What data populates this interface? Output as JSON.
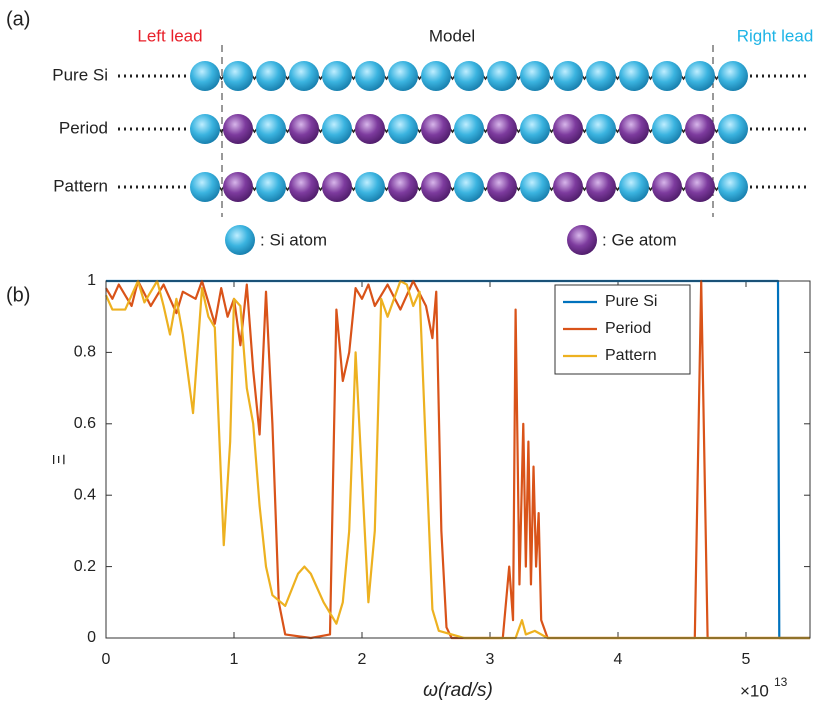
{
  "diagram": {
    "panel_label": "(a)",
    "left_lead": "Left lead",
    "model": "Model",
    "right_lead": "Right lead",
    "rows": [
      "Pure Si",
      "Period",
      "Pattern"
    ],
    "si_legend": ": Si atom",
    "ge_legend": ": Ge atom"
  },
  "chart_data": {
    "type": "line",
    "panel_label": "(b)",
    "x_label": "ω(rad/s)",
    "y_label": "Ξ",
    "x_multiplier": "×10",
    "x_exponent": "13",
    "xlim": [
      0,
      5.5
    ],
    "ylim": [
      0,
      1
    ],
    "xticks": [
      0,
      1,
      2,
      3,
      4,
      5
    ],
    "yticks": [
      0,
      0.2,
      0.4,
      0.6,
      0.8,
      1
    ],
    "legend": "upper right",
    "series": [
      {
        "name": "Pure Si",
        "color": "#0072bd",
        "x": [
          0,
          5.25,
          5.26,
          5.5
        ],
        "values": [
          1,
          1,
          0,
          0
        ]
      },
      {
        "name": "Period",
        "color": "#d95319",
        "x": [
          0,
          0.05,
          0.1,
          0.2,
          0.25,
          0.35,
          0.45,
          0.55,
          0.6,
          0.7,
          0.75,
          0.85,
          0.9,
          0.95,
          1.0,
          1.05,
          1.1,
          1.15,
          1.2,
          1.25,
          1.3,
          1.35,
          1.4,
          1.6,
          1.75,
          1.8,
          1.85,
          1.9,
          1.95,
          2.0,
          2.05,
          2.1,
          2.2,
          2.3,
          2.4,
          2.5,
          2.55,
          2.58,
          2.62,
          2.66,
          2.7,
          3.1,
          3.15,
          3.18,
          3.2,
          3.23,
          3.26,
          3.28,
          3.3,
          3.32,
          3.34,
          3.36,
          3.38,
          3.4,
          3.45,
          4.6,
          4.65,
          4.7,
          5.5
        ],
        "values": [
          0.98,
          0.95,
          0.99,
          0.93,
          1,
          0.93,
          0.99,
          0.91,
          0.97,
          0.95,
          1,
          0.88,
          0.98,
          0.9,
          0.95,
          0.82,
          0.99,
          0.75,
          0.57,
          0.97,
          0.6,
          0.1,
          0.01,
          0,
          0.01,
          0.92,
          0.72,
          0.8,
          0.98,
          0.95,
          0.99,
          0.93,
          0.99,
          0.92,
          1,
          0.93,
          0.84,
          0.97,
          0.3,
          0.03,
          0,
          0,
          0.2,
          0.05,
          0.92,
          0.15,
          0.6,
          0.2,
          0.55,
          0.15,
          0.48,
          0.2,
          0.35,
          0.05,
          0,
          0,
          1,
          0,
          0
        ]
      },
      {
        "name": "Pattern",
        "color": "#edb120",
        "x": [
          0,
          0.05,
          0.15,
          0.25,
          0.3,
          0.4,
          0.45,
          0.5,
          0.55,
          0.6,
          0.68,
          0.75,
          0.8,
          0.85,
          0.92,
          0.97,
          1.0,
          1.05,
          1.1,
          1.15,
          1.2,
          1.25,
          1.3,
          1.4,
          1.5,
          1.55,
          1.6,
          1.7,
          1.8,
          1.85,
          1.9,
          1.95,
          2.0,
          2.05,
          2.1,
          2.15,
          2.2,
          2.3,
          2.35,
          2.4,
          2.45,
          2.5,
          2.55,
          2.6,
          2.8,
          3.2,
          3.25,
          3.28,
          3.35,
          3.45,
          5.5
        ],
        "values": [
          0.96,
          0.92,
          0.92,
          1,
          0.94,
          1,
          0.93,
          0.85,
          0.95,
          0.85,
          0.63,
          0.98,
          0.9,
          0.87,
          0.26,
          0.55,
          0.95,
          0.93,
          0.7,
          0.6,
          0.37,
          0.2,
          0.12,
          0.09,
          0.18,
          0.2,
          0.18,
          0.1,
          0.04,
          0.1,
          0.3,
          0.8,
          0.45,
          0.1,
          0.3,
          0.95,
          0.9,
          1,
          0.99,
          0.93,
          0.97,
          0.52,
          0.08,
          0.02,
          0,
          0,
          0.05,
          0.01,
          0.02,
          0,
          0
        ]
      }
    ]
  }
}
